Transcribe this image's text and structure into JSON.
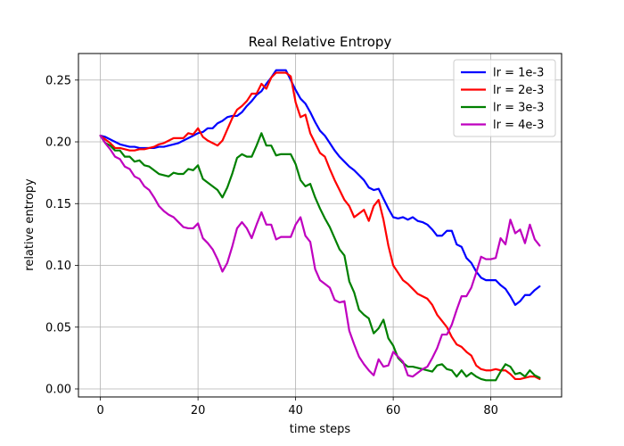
{
  "chart_data": {
    "type": "line",
    "title": "Real Relative Entropy",
    "xlabel": "time steps",
    "ylabel": "relative entropy",
    "xlim": [
      -4.5,
      94.5
    ],
    "ylim": [
      -0.0065,
      0.2715
    ],
    "xticks": [
      "0",
      "20",
      "40",
      "60",
      "80"
    ],
    "xtick_values": [
      0,
      20,
      40,
      60,
      80
    ],
    "yticks": [
      "0.00",
      "0.05",
      "0.10",
      "0.15",
      "0.20",
      "0.25"
    ],
    "ytick_values": [
      0.0,
      0.05,
      0.1,
      0.15,
      0.2,
      0.25
    ],
    "grid": true,
    "legend_position": "top-right",
    "x_start": 0,
    "x_step": 1,
    "series": [
      {
        "name": "lr = 1e-3",
        "color": "#0000ff",
        "values": [
          0.205,
          0.204,
          0.202,
          0.2,
          0.198,
          0.197,
          0.196,
          0.196,
          0.195,
          0.195,
          0.195,
          0.195,
          0.196,
          0.196,
          0.197,
          0.198,
          0.199,
          0.201,
          0.203,
          0.205,
          0.207,
          0.208,
          0.211,
          0.211,
          0.215,
          0.217,
          0.22,
          0.221,
          0.221,
          0.224,
          0.229,
          0.233,
          0.238,
          0.241,
          0.247,
          0.252,
          0.258,
          0.258,
          0.258,
          0.25,
          0.242,
          0.235,
          0.231,
          0.224,
          0.216,
          0.209,
          0.205,
          0.199,
          0.193,
          0.188,
          0.184,
          0.18,
          0.177,
          0.173,
          0.169,
          0.163,
          0.161,
          0.162,
          0.154,
          0.146,
          0.139,
          0.138,
          0.139,
          0.137,
          0.139,
          0.136,
          0.135,
          0.133,
          0.129,
          0.124,
          0.124,
          0.128,
          0.128,
          0.117,
          0.115,
          0.106,
          0.102,
          0.095,
          0.09,
          0.088,
          0.088,
          0.088,
          0.084,
          0.081,
          0.075,
          0.068,
          0.071,
          0.076,
          0.076,
          0.08,
          0.083
        ]
      },
      {
        "name": "lr = 2e-3",
        "color": "#ff0000",
        "values": [
          0.205,
          0.202,
          0.199,
          0.195,
          0.195,
          0.194,
          0.193,
          0.193,
          0.194,
          0.194,
          0.195,
          0.196,
          0.198,
          0.199,
          0.201,
          0.203,
          0.203,
          0.203,
          0.207,
          0.206,
          0.211,
          0.204,
          0.201,
          0.199,
          0.197,
          0.201,
          0.21,
          0.219,
          0.226,
          0.229,
          0.233,
          0.239,
          0.239,
          0.247,
          0.243,
          0.252,
          0.256,
          0.256,
          0.256,
          0.253,
          0.232,
          0.22,
          0.222,
          0.207,
          0.199,
          0.191,
          0.188,
          0.178,
          0.169,
          0.161,
          0.153,
          0.148,
          0.139,
          0.142,
          0.145,
          0.136,
          0.148,
          0.153,
          0.137,
          0.116,
          0.1,
          0.094,
          0.088,
          0.085,
          0.081,
          0.077,
          0.075,
          0.073,
          0.068,
          0.06,
          0.055,
          0.05,
          0.042,
          0.036,
          0.034,
          0.03,
          0.027,
          0.019,
          0.016,
          0.015,
          0.015,
          0.016,
          0.015,
          0.015,
          0.012,
          0.008,
          0.008,
          0.009,
          0.01,
          0.01,
          0.008
        ]
      },
      {
        "name": "lr = 3e-3",
        "color": "#008000",
        "values": [
          0.205,
          0.199,
          0.197,
          0.193,
          0.193,
          0.188,
          0.188,
          0.184,
          0.185,
          0.181,
          0.18,
          0.177,
          0.174,
          0.173,
          0.172,
          0.175,
          0.174,
          0.174,
          0.178,
          0.177,
          0.181,
          0.17,
          0.167,
          0.164,
          0.161,
          0.155,
          0.163,
          0.174,
          0.187,
          0.19,
          0.188,
          0.188,
          0.197,
          0.207,
          0.197,
          0.197,
          0.189,
          0.19,
          0.19,
          0.19,
          0.182,
          0.169,
          0.164,
          0.166,
          0.155,
          0.146,
          0.138,
          0.131,
          0.122,
          0.113,
          0.108,
          0.087,
          0.078,
          0.064,
          0.06,
          0.057,
          0.045,
          0.049,
          0.056,
          0.041,
          0.035,
          0.025,
          0.021,
          0.018,
          0.018,
          0.017,
          0.016,
          0.015,
          0.014,
          0.019,
          0.02,
          0.016,
          0.015,
          0.01,
          0.015,
          0.01,
          0.013,
          0.01,
          0.008,
          0.007,
          0.007,
          0.007,
          0.014,
          0.02,
          0.018,
          0.012,
          0.013,
          0.01,
          0.015,
          0.011,
          0.009
        ]
      },
      {
        "name": "lr = 4e-3",
        "color": "#bf00bf",
        "values": [
          0.205,
          0.199,
          0.194,
          0.188,
          0.186,
          0.18,
          0.178,
          0.172,
          0.17,
          0.164,
          0.161,
          0.155,
          0.148,
          0.144,
          0.141,
          0.139,
          0.135,
          0.131,
          0.13,
          0.13,
          0.134,
          0.122,
          0.118,
          0.113,
          0.105,
          0.095,
          0.102,
          0.115,
          0.13,
          0.135,
          0.13,
          0.122,
          0.133,
          0.143,
          0.133,
          0.133,
          0.121,
          0.123,
          0.123,
          0.123,
          0.133,
          0.139,
          0.124,
          0.119,
          0.097,
          0.088,
          0.085,
          0.082,
          0.072,
          0.07,
          0.071,
          0.047,
          0.036,
          0.026,
          0.02,
          0.015,
          0.011,
          0.024,
          0.018,
          0.019,
          0.03,
          0.026,
          0.022,
          0.011,
          0.01,
          0.013,
          0.016,
          0.018,
          0.025,
          0.033,
          0.044,
          0.044,
          0.052,
          0.064,
          0.075,
          0.075,
          0.082,
          0.094,
          0.107,
          0.105,
          0.105,
          0.106,
          0.122,
          0.117,
          0.137,
          0.126,
          0.129,
          0.118,
          0.133,
          0.121,
          0.116
        ]
      }
    ]
  }
}
